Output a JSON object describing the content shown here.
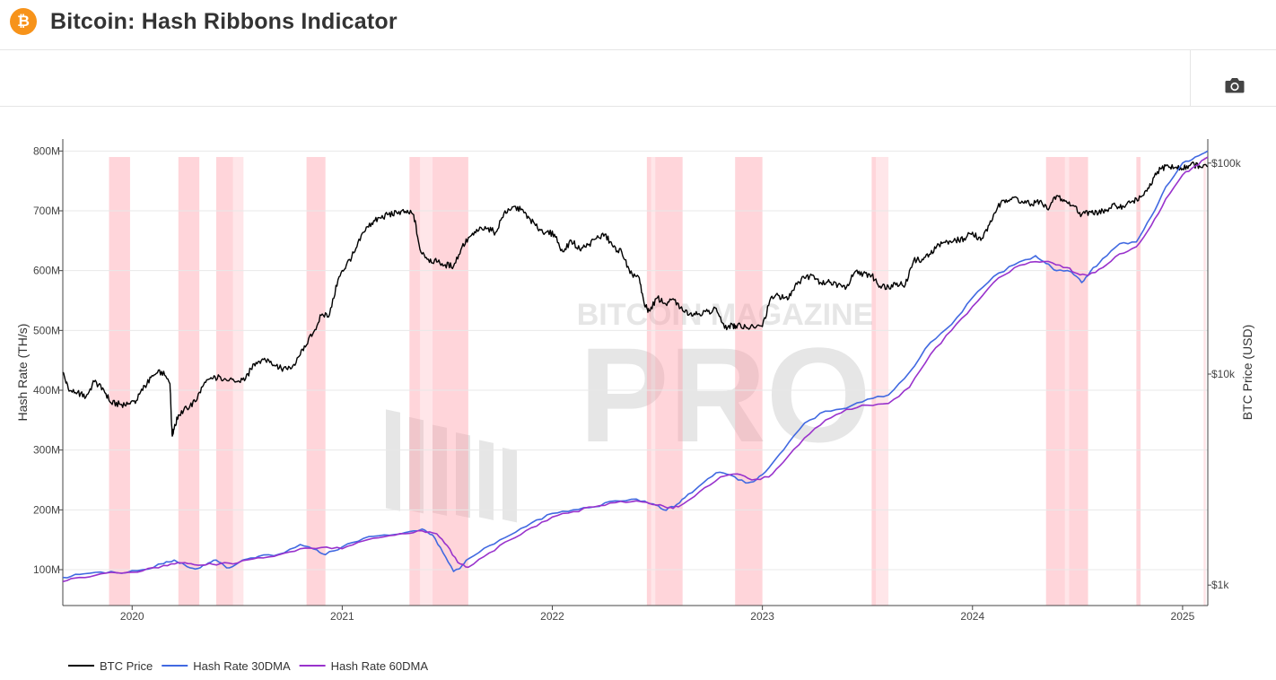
{
  "header": {
    "title": "Bitcoin: Hash Ribbons Indicator",
    "logo_glyph": "₿"
  },
  "toolbar": {
    "camera_icon": "camera-icon"
  },
  "chart_data": {
    "type": "line",
    "title": "Bitcoin: Hash Ribbons Indicator",
    "x_ticks": [
      "2020",
      "2021",
      "2022",
      "2023",
      "2024",
      "2025"
    ],
    "x_range": [
      2019.67,
      2025.12
    ],
    "y_left": {
      "label": "Hash Rate (TH/s)",
      "range": [
        40,
        820
      ],
      "ticks": [
        100,
        200,
        300,
        400,
        500,
        600,
        700,
        800
      ],
      "tick_labels": [
        "100M",
        "200M",
        "300M",
        "400M",
        "500M",
        "600M",
        "700M",
        "800M"
      ]
    },
    "y_right": {
      "label": "BTC Price (USD)",
      "scale": "log",
      "range": [
        800,
        130000
      ],
      "ticks": [
        1000,
        10000,
        100000
      ],
      "tick_labels": [
        "$1k",
        "$10k",
        "$100k"
      ]
    },
    "capitulation_bands": [
      [
        2019.89,
        2019.99,
        0.75
      ],
      [
        2019.99,
        2019.98,
        0.0
      ],
      [
        2020.22,
        2020.32,
        0.75
      ],
      [
        2020.4,
        2020.48,
        0.75
      ],
      [
        2020.48,
        2020.53,
        0.45
      ],
      [
        2020.83,
        2020.92,
        0.75
      ],
      [
        2021.32,
        2021.37,
        0.75
      ],
      [
        2021.37,
        2021.43,
        0.45
      ],
      [
        2021.43,
        2021.6,
        0.75
      ],
      [
        2022.45,
        2022.47,
        0.75
      ],
      [
        2022.47,
        2022.49,
        0.45
      ],
      [
        2022.49,
        2022.62,
        0.75
      ],
      [
        2022.87,
        2023.0,
        0.75
      ],
      [
        2023.52,
        2023.54,
        0.75
      ],
      [
        2023.54,
        2023.6,
        0.45
      ],
      [
        2024.35,
        2024.44,
        0.75
      ],
      [
        2024.44,
        2024.46,
        0.45
      ],
      [
        2024.46,
        2024.55,
        0.75
      ],
      [
        2024.78,
        2024.8,
        0.75
      ],
      [
        2025.1,
        2025.11,
        0.5
      ]
    ],
    "series": [
      {
        "name": "BTC Price",
        "color": "#000000",
        "axis": "right",
        "x": [
          2019.67,
          2019.7,
          2019.74,
          2019.78,
          2019.82,
          2019.86,
          2019.9,
          2019.94,
          2019.98,
          2020.02,
          2020.06,
          2020.1,
          2020.14,
          2020.18,
          2020.19,
          2020.2,
          2020.22,
          2020.26,
          2020.3,
          2020.34,
          2020.38,
          2020.42,
          2020.46,
          2020.5,
          2020.54,
          2020.58,
          2020.62,
          2020.66,
          2020.7,
          2020.74,
          2020.78,
          2020.82,
          2020.86,
          2020.9,
          2020.94,
          2020.98,
          2021.02,
          2021.06,
          2021.1,
          2021.14,
          2021.18,
          2021.22,
          2021.26,
          2021.3,
          2021.34,
          2021.37,
          2021.41,
          2021.45,
          2021.49,
          2021.53,
          2021.57,
          2021.61,
          2021.65,
          2021.69,
          2021.73,
          2021.77,
          2021.81,
          2021.85,
          2021.89,
          2021.93,
          2021.97,
          2022.01,
          2022.05,
          2022.09,
          2022.13,
          2022.17,
          2022.21,
          2022.25,
          2022.29,
          2022.33,
          2022.37,
          2022.41,
          2022.44,
          2022.46,
          2022.5,
          2022.54,
          2022.58,
          2022.62,
          2022.66,
          2022.7,
          2022.74,
          2022.78,
          2022.82,
          2022.86,
          2022.88,
          2022.92,
          2022.96,
          2023.0,
          2023.04,
          2023.08,
          2023.12,
          2023.16,
          2023.2,
          2023.24,
          2023.28,
          2023.32,
          2023.36,
          2023.4,
          2023.44,
          2023.48,
          2023.52,
          2023.56,
          2023.6,
          2023.64,
          2023.68,
          2023.72,
          2023.76,
          2023.8,
          2023.84,
          2023.88,
          2023.92,
          2023.96,
          2024.0,
          2024.04,
          2024.08,
          2024.12,
          2024.16,
          2024.2,
          2024.24,
          2024.28,
          2024.32,
          2024.36,
          2024.4,
          2024.44,
          2024.48,
          2024.52,
          2024.56,
          2024.6,
          2024.64,
          2024.68,
          2024.72,
          2024.76,
          2024.8,
          2024.84,
          2024.88,
          2024.92,
          2024.96,
          2025.0,
          2025.04,
          2025.08,
          2025.12
        ],
        "values": [
          10200,
          8300,
          8200,
          7800,
          9200,
          8600,
          7300,
          7200,
          7200,
          7500,
          8800,
          9800,
          10300,
          9000,
          5200,
          5500,
          6400,
          6900,
          7400,
          8900,
          9500,
          9700,
          9300,
          9200,
          9500,
          11200,
          11800,
          11500,
          10700,
          10500,
          11300,
          13600,
          15500,
          19000,
          19200,
          28000,
          33000,
          38000,
          47000,
          52000,
          55000,
          57000,
          58000,
          59000,
          57000,
          39000,
          35000,
          34000,
          33000,
          32500,
          40000,
          45000,
          48000,
          49000,
          47000,
          58000,
          62000,
          60000,
          55000,
          49000,
          47000,
          46000,
          38000,
          43000,
          39000,
          41000,
          44000,
          46000,
          40000,
          38000,
          30000,
          29000,
          21000,
          20000,
          23000,
          21500,
          22500,
          20000,
          19500,
          19300,
          19800,
          20500,
          16500,
          17000,
          16900,
          16800,
          16600,
          16800,
          23000,
          23500,
          22500,
          27000,
          28500,
          29500,
          27000,
          27200,
          26500,
          25800,
          30500,
          30000,
          29300,
          26100,
          26000,
          27000,
          26500,
          34500,
          35000,
          37000,
          41000,
          42500,
          43000,
          44000,
          47000,
          43000,
          51000,
          62000,
          67000,
          69000,
          65000,
          64000,
          66000,
          60000,
          70000,
          66000,
          63000,
          57000,
          59000,
          58000,
          60000,
          63000,
          62000,
          66000,
          69000,
          76000,
          91000,
          97000,
          95000,
          94000,
          99000,
          97000,
          96000
        ],
        "jitter": 0.035
      },
      {
        "name": "Hash Rate 30DMA",
        "color": "#4169e1",
        "axis": "left",
        "x": [
          2019.67,
          2019.75,
          2019.85,
          2019.95,
          2020.05,
          2020.15,
          2020.2,
          2020.25,
          2020.3,
          2020.35,
          2020.4,
          2020.45,
          2020.5,
          2020.55,
          2020.6,
          2020.7,
          2020.8,
          2020.88,
          2020.92,
          2021.0,
          2021.1,
          2021.2,
          2021.3,
          2021.38,
          2021.43,
          2021.48,
          2021.53,
          2021.56,
          2021.6,
          2021.7,
          2021.8,
          2021.9,
          2022.0,
          2022.1,
          2022.2,
          2022.3,
          2022.4,
          2022.48,
          2022.53,
          2022.58,
          2022.63,
          2022.7,
          2022.78,
          2022.85,
          2022.92,
          2022.97,
          2023.03,
          2023.1,
          2023.2,
          2023.3,
          2023.4,
          2023.5,
          2023.6,
          2023.7,
          2023.8,
          2023.9,
          2024.0,
          2024.1,
          2024.2,
          2024.3,
          2024.35,
          2024.4,
          2024.47,
          2024.52,
          2024.56,
          2024.62,
          2024.7,
          2024.78,
          2024.85,
          2024.92,
          2025.0,
          2025.06,
          2025.12
        ],
        "values": [
          87,
          92,
          96,
          94,
          100,
          110,
          116,
          108,
          101,
          108,
          116,
          103,
          110,
          118,
          122,
          126,
          142,
          133,
          125,
          138,
          152,
          158,
          162,
          168,
          158,
          128,
          97,
          102,
          118,
          140,
          158,
          178,
          194,
          200,
          205,
          215,
          218,
          210,
          200,
          205,
          220,
          240,
          262,
          258,
          245,
          250,
          270,
          300,
          345,
          365,
          370,
          385,
          392,
          430,
          480,
          510,
          555,
          590,
          610,
          625,
          612,
          600,
          598,
          580,
          598,
          620,
          645,
          648,
          690,
          740,
          780,
          790,
          800
        ]
      },
      {
        "name": "Hash Rate 60DMA",
        "color": "#9932cc",
        "axis": "left",
        "x": [
          2019.67,
          2019.75,
          2019.85,
          2019.95,
          2020.05,
          2020.15,
          2020.22,
          2020.28,
          2020.35,
          2020.42,
          2020.5,
          2020.6,
          2020.7,
          2020.8,
          2020.9,
          2021.0,
          2021.1,
          2021.2,
          2021.3,
          2021.38,
          2021.45,
          2021.5,
          2021.55,
          2021.6,
          2021.7,
          2021.8,
          2021.9,
          2022.0,
          2022.1,
          2022.2,
          2022.3,
          2022.4,
          2022.5,
          2022.55,
          2022.6,
          2022.7,
          2022.8,
          2022.88,
          2022.95,
          2023.03,
          2023.1,
          2023.2,
          2023.3,
          2023.4,
          2023.5,
          2023.6,
          2023.7,
          2023.8,
          2023.9,
          2024.0,
          2024.1,
          2024.2,
          2024.3,
          2024.38,
          2024.45,
          2024.5,
          2024.55,
          2024.62,
          2024.7,
          2024.78,
          2024.85,
          2024.92,
          2025.0,
          2025.06,
          2025.12
        ],
        "values": [
          80,
          87,
          93,
          94,
          98,
          107,
          112,
          110,
          108,
          110,
          111,
          120,
          125,
          135,
          137,
          135,
          148,
          155,
          160,
          165,
          160,
          140,
          112,
          104,
          128,
          150,
          170,
          188,
          197,
          205,
          212,
          215,
          208,
          203,
          205,
          230,
          255,
          260,
          250,
          255,
          280,
          320,
          350,
          368,
          375,
          378,
          405,
          460,
          500,
          540,
          580,
          605,
          615,
          613,
          605,
          595,
          592,
          605,
          628,
          640,
          675,
          720,
          760,
          775,
          790
        ]
      }
    ],
    "legend": {
      "position": "bottom-left",
      "entries": [
        "BTC Price",
        "Hash Rate 30DMA",
        "Hash Rate 60DMA"
      ]
    },
    "watermark": {
      "line1": "BITCOIN MAGAZINE",
      "line2": "PRO",
      "color": "#e6e6e6"
    },
    "grid": true
  }
}
